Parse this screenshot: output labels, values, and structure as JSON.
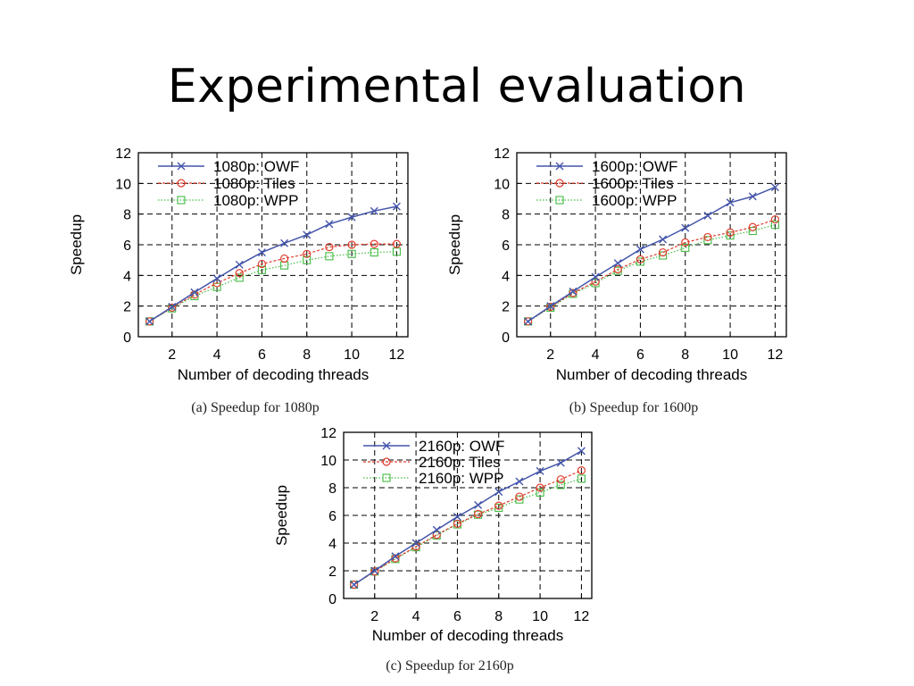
{
  "slide": {
    "title": "Experimental evaluation"
  },
  "chart_data": [
    {
      "type": "line",
      "caption": "(a) Speedup for 1080p",
      "xlabel": "Number of decoding threads",
      "ylabel": "Speedup",
      "xlim": [
        0.5,
        12.5
      ],
      "ylim": [
        0,
        12
      ],
      "xticks": [
        2,
        4,
        6,
        8,
        10,
        12
      ],
      "yticks": [
        0,
        2,
        4,
        6,
        8,
        10,
        12
      ],
      "grid": true,
      "legend_position": "top-left",
      "x": [
        1,
        2,
        3,
        4,
        5,
        6,
        7,
        8,
        9,
        10,
        11,
        12
      ],
      "series": [
        {
          "name": "1080p: OWF",
          "color": "#4455aa",
          "marker": "x",
          "dash": "solid",
          "values": [
            1.0,
            1.95,
            2.9,
            3.8,
            4.7,
            5.5,
            6.1,
            6.65,
            7.35,
            7.8,
            8.2,
            8.5
          ]
        },
        {
          "name": "1080p: Tiles",
          "color": "#e03c2c",
          "marker": "circle",
          "dash": "dashed",
          "values": [
            1.0,
            1.9,
            2.75,
            3.5,
            4.15,
            4.75,
            5.1,
            5.4,
            5.85,
            6.0,
            6.05,
            6.05
          ]
        },
        {
          "name": "1080p: WPP",
          "color": "#44bb44",
          "marker": "square",
          "dash": "dotted",
          "values": [
            1.0,
            1.85,
            2.65,
            3.25,
            3.85,
            4.35,
            4.65,
            5.0,
            5.25,
            5.4,
            5.5,
            5.55
          ]
        }
      ]
    },
    {
      "type": "line",
      "caption": "(b) Speedup for 1600p",
      "xlabel": "Number of decoding threads",
      "ylabel": "Speedup",
      "xlim": [
        0.5,
        12.5
      ],
      "ylim": [
        0,
        12
      ],
      "xticks": [
        2,
        4,
        6,
        8,
        10,
        12
      ],
      "yticks": [
        0,
        2,
        4,
        6,
        8,
        10,
        12
      ],
      "grid": true,
      "legend_position": "top-left",
      "x": [
        1,
        2,
        3,
        4,
        5,
        6,
        7,
        8,
        9,
        10,
        11,
        12
      ],
      "series": [
        {
          "name": "1600p: OWF",
          "color": "#4455aa",
          "marker": "x",
          "dash": "solid",
          "values": [
            1.0,
            2.0,
            2.95,
            3.9,
            4.8,
            5.7,
            6.35,
            7.1,
            7.9,
            8.75,
            9.15,
            9.75
          ]
        },
        {
          "name": "1600p: Tiles",
          "color": "#e03c2c",
          "marker": "circle",
          "dash": "dashed",
          "values": [
            1.0,
            1.95,
            2.85,
            3.6,
            4.4,
            5.05,
            5.5,
            6.15,
            6.5,
            6.8,
            7.15,
            7.65
          ]
        },
        {
          "name": "1600p: WPP",
          "color": "#44bb44",
          "marker": "square",
          "dash": "dotted",
          "values": [
            1.0,
            1.9,
            2.8,
            3.5,
            4.3,
            4.9,
            5.3,
            5.8,
            6.3,
            6.6,
            6.9,
            7.3
          ]
        }
      ]
    },
    {
      "type": "line",
      "caption": "(c) Speedup for 2160p",
      "xlabel": "Number of decoding threads",
      "ylabel": "Speedup",
      "xlim": [
        0.5,
        12.5
      ],
      "ylim": [
        0,
        12
      ],
      "xticks": [
        2,
        4,
        6,
        8,
        10,
        12
      ],
      "yticks": [
        0,
        2,
        4,
        6,
        8,
        10,
        12
      ],
      "grid": true,
      "legend_position": "top-left",
      "x": [
        1,
        2,
        3,
        4,
        5,
        6,
        7,
        8,
        9,
        10,
        11,
        12
      ],
      "series": [
        {
          "name": "2160p: OWF",
          "color": "#4455aa",
          "marker": "x",
          "dash": "solid",
          "values": [
            1.0,
            2.0,
            3.05,
            4.0,
            4.95,
            5.9,
            6.75,
            7.7,
            8.45,
            9.2,
            9.8,
            10.65
          ]
        },
        {
          "name": "2160p: Tiles",
          "color": "#e03c2c",
          "marker": "circle",
          "dash": "dashed",
          "values": [
            1.0,
            1.95,
            2.9,
            3.75,
            4.6,
            5.4,
            6.1,
            6.7,
            7.35,
            8.0,
            8.6,
            9.25
          ]
        },
        {
          "name": "2160p: WPP",
          "color": "#44bb44",
          "marker": "square",
          "dash": "dotted",
          "values": [
            1.0,
            1.95,
            2.85,
            3.7,
            4.55,
            5.35,
            6.05,
            6.55,
            7.15,
            7.65,
            8.2,
            8.65
          ]
        }
      ]
    }
  ]
}
